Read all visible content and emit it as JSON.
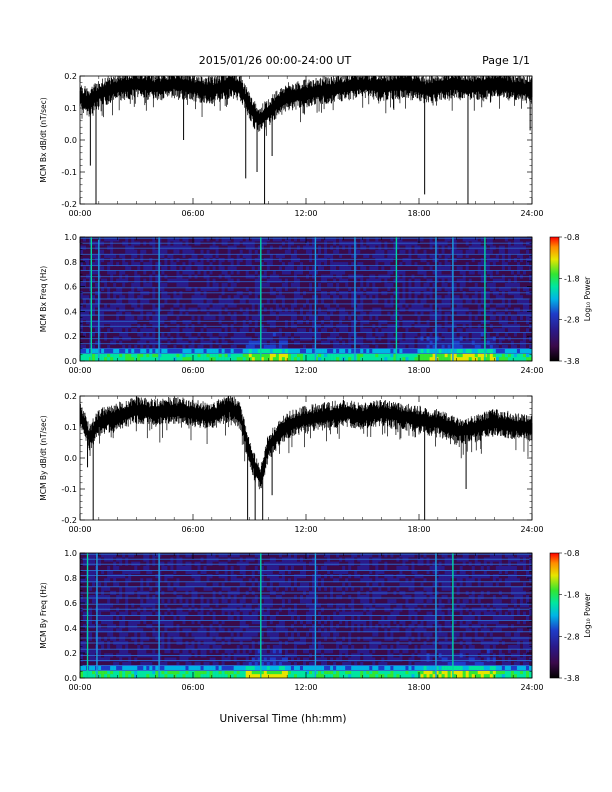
{
  "header": {
    "title": "2015/01/26  00:00-24:00 UT",
    "page": "Page 1/1"
  },
  "colors": {
    "trace": "#000000",
    "axes": "#000000",
    "spectrogram_scale": [
      "#000000",
      "#3a0a4a",
      "#2a1a8a",
      "#1e3cc8",
      "#00b4e6",
      "#00e6a0",
      "#32e632",
      "#e6e600",
      "#ff8c00",
      "#ff0000"
    ]
  },
  "chart_data": [
    {
      "type": "line",
      "panel": "bx-dbdt",
      "ylabel": "MCM Bx dB/dt (nT/sec)",
      "ylim": [
        -0.2,
        0.2
      ],
      "yticks": [
        "-0.2",
        "-0.1",
        "0.0",
        "0.1",
        "0.2"
      ],
      "xlim": [
        0,
        24
      ],
      "xticks": [
        "00:00",
        "06:00",
        "12:00",
        "18:00",
        "24:00"
      ],
      "baseline_top": 0.18,
      "series": [
        {
          "x": [
            0,
            0.5,
            1,
            2,
            3,
            4,
            5,
            6,
            7,
            8,
            8.5,
            9,
            9.3,
            9.6,
            10,
            10.5,
            11,
            12,
            13,
            14,
            15,
            16,
            17,
            18,
            18.5,
            19,
            20,
            21,
            22,
            23,
            24
          ],
          "y": [
            0.12,
            0.1,
            0.13,
            0.15,
            0.16,
            0.15,
            0.16,
            0.15,
            0.14,
            0.16,
            0.15,
            0.09,
            0.06,
            0.05,
            0.07,
            0.1,
            0.12,
            0.13,
            0.14,
            0.15,
            0.16,
            0.15,
            0.16,
            0.15,
            0.14,
            0.15,
            0.16,
            0.15,
            0.16,
            0.15,
            0.14
          ]
        }
      ],
      "spikes": [
        {
          "x": 0.55,
          "y": -0.08
        },
        {
          "x": 0.85,
          "y": -0.2
        },
        {
          "x": 5.5,
          "y": 0.0
        },
        {
          "x": 8.8,
          "y": -0.12
        },
        {
          "x": 9.4,
          "y": -0.1
        },
        {
          "x": 9.8,
          "y": -0.2
        },
        {
          "x": 10.2,
          "y": -0.05
        },
        {
          "x": 18.3,
          "y": -0.17
        },
        {
          "x": 20.6,
          "y": -0.2
        },
        {
          "x": 23.9,
          "y": 0.03
        }
      ]
    },
    {
      "type": "heatmap",
      "panel": "bx-spectrogram",
      "ylabel": "MCM Bx Freq (Hz)",
      "ylim": [
        0.0,
        1.0
      ],
      "yticks": [
        "0.0",
        "0.2",
        "0.4",
        "0.6",
        "0.8",
        "1.0"
      ],
      "xlim": [
        0,
        24
      ],
      "xticks": [
        "00:00",
        "06:00",
        "12:00",
        "18:00",
        "24:00"
      ],
      "colorbar": {
        "label": "Log₁₀ Power",
        "range": [
          -3.8,
          -0.8
        ],
        "ticks": [
          "-0.8",
          "-1.8",
          "-2.8",
          "-3.8"
        ]
      },
      "harmonic_lines_hz": [
        0.06,
        0.1,
        0.14,
        0.18,
        0.23,
        0.28,
        0.32,
        0.37,
        0.41,
        0.46,
        0.5,
        0.55,
        0.59,
        0.64,
        0.68,
        0.73,
        0.77,
        0.82,
        0.86,
        0.91,
        0.95,
        0.99
      ],
      "vertical_streaks_hr": [
        0.6,
        1.0,
        4.2,
        9.6,
        12.5,
        14.6,
        16.8,
        18.9,
        19.8,
        21.5
      ]
    },
    {
      "type": "line",
      "panel": "by-dbdt",
      "ylabel": "MCM By dB/dt (nT/sec)",
      "ylim": [
        -0.2,
        0.2
      ],
      "yticks": [
        "-0.2",
        "-0.1",
        "0.0",
        "0.1",
        "0.2"
      ],
      "xlim": [
        0,
        24
      ],
      "xticks": [
        "00:00",
        "06:00",
        "12:00",
        "18:00",
        "24:00"
      ],
      "baseline_top": 0.18,
      "series": [
        {
          "x": [
            0,
            0.5,
            1,
            2,
            3,
            4,
            5,
            6,
            7,
            8,
            8.5,
            9,
            9.3,
            9.6,
            10,
            10.5,
            11,
            12,
            13,
            14,
            15,
            16,
            17,
            18,
            18.5,
            19,
            20,
            21,
            22,
            23,
            24
          ],
          "y": [
            0.13,
            0.05,
            0.1,
            0.12,
            0.14,
            0.13,
            0.14,
            0.13,
            0.12,
            0.15,
            0.12,
            0.0,
            -0.05,
            -0.08,
            0.02,
            0.06,
            0.09,
            0.11,
            0.12,
            0.13,
            0.12,
            0.13,
            0.12,
            0.11,
            0.1,
            0.1,
            0.07,
            0.08,
            0.1,
            0.09,
            0.08
          ]
        }
      ],
      "spikes": [
        {
          "x": 0.4,
          "y": -0.03
        },
        {
          "x": 0.7,
          "y": -0.2
        },
        {
          "x": 8.9,
          "y": -0.2
        },
        {
          "x": 9.3,
          "y": -0.2
        },
        {
          "x": 9.7,
          "y": -0.2
        },
        {
          "x": 10.2,
          "y": -0.12
        },
        {
          "x": 18.3,
          "y": -0.2
        },
        {
          "x": 20.5,
          "y": -0.1
        }
      ]
    },
    {
      "type": "heatmap",
      "panel": "by-spectrogram",
      "ylabel": "MCM By Freq (Hz)",
      "ylim": [
        0.0,
        1.0
      ],
      "yticks": [
        "0.0",
        "0.2",
        "0.4",
        "0.6",
        "0.8",
        "1.0"
      ],
      "xlim": [
        0,
        24
      ],
      "xticks": [
        "00:00",
        "06:00",
        "12:00",
        "18:00",
        "24:00"
      ],
      "colorbar": {
        "label": "Log₁₀ Power",
        "range": [
          -3.8,
          -0.8
        ],
        "ticks": [
          "-0.8",
          "-1.8",
          "-2.8",
          "-3.8"
        ]
      },
      "harmonic_lines_hz": [
        0.06,
        0.1,
        0.14,
        0.18,
        0.23,
        0.28,
        0.32,
        0.37,
        0.41,
        0.46,
        0.5,
        0.55,
        0.59,
        0.64,
        0.68,
        0.73,
        0.77,
        0.82,
        0.86,
        0.91,
        0.95,
        0.99
      ],
      "vertical_streaks_hr": [
        0.4,
        0.9,
        4.2,
        9.6,
        12.5,
        18.9,
        19.8
      ]
    }
  ],
  "xaxis_title": "Universal Time (hh:mm)"
}
